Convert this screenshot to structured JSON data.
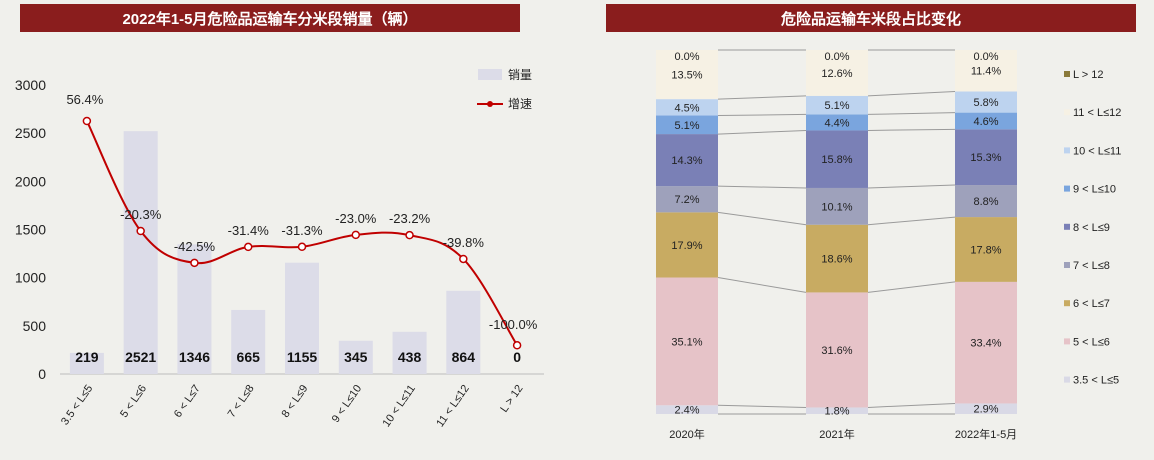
{
  "left": {
    "title": "2022年1-5月危险品运输车分米段销量（辆）",
    "legend": {
      "bar": "销量",
      "line": "增速"
    }
  },
  "right": {
    "title": "危险品运输车米段占比变化"
  },
  "colors": {
    "bar": "#dcdce8",
    "line": "#c00000",
    "title_bg": "#8a1d1d"
  },
  "chart_data": [
    {
      "type": "bar",
      "title": "2022年1-5月危险品运输车分米段销量（辆）",
      "categories": [
        "3.5 < L≤5",
        "5 < L≤6",
        "6 < L≤7",
        "7 < L≤8",
        "8 < L≤9",
        "9 < L≤10",
        "10 < L≤11",
        "11 < L≤12",
        "L > 12"
      ],
      "ylim": [
        0,
        3000
      ],
      "yticks": [
        0,
        500,
        1000,
        1500,
        2000,
        2500,
        3000
      ],
      "series": [
        {
          "name": "销量",
          "type": "bar",
          "values": [
            219,
            2521,
            1346,
            665,
            1155,
            345,
            438,
            864,
            0
          ]
        },
        {
          "name": "增速",
          "type": "line",
          "values": [
            56.4,
            -20.3,
            -42.5,
            -31.4,
            -31.3,
            -23.0,
            -23.2,
            -39.8,
            -100.0
          ],
          "labels": [
            "56.4%",
            "-20.3%",
            "-42.5%",
            "-31.4%",
            "-31.3%",
            "-23.0%",
            "-23.2%",
            "-39.8%",
            "-100.0%"
          ]
        }
      ],
      "grid": false,
      "legend_position": "top-right"
    },
    {
      "type": "bar",
      "stacked": true,
      "percent": true,
      "title": "危险品运输车米段占比变化",
      "categories": [
        "2020年",
        "2021年",
        "2022年1-5月"
      ],
      "segments_bottom_to_top": [
        "3.5 < L≤5",
        "5 < L≤6",
        "6 < L≤7",
        "7 < L≤8",
        "8 < L≤9",
        "9 < L≤10",
        "10 < L≤11",
        "11 < L≤12",
        "L > 12"
      ],
      "legend_top_to_bottom": [
        "L > 12",
        "11 < L≤12",
        "10 < L≤11",
        "9 < L≤10",
        "8 < L≤9",
        "7 < L≤8",
        "6 < L≤7",
        "5 < L≤6",
        "3.5 < L≤5"
      ],
      "legend_position": "right",
      "series": [
        {
          "name": "3.5 < L≤5",
          "color": "#d9d9e6",
          "values": [
            2.4,
            1.8,
            2.9
          ],
          "labels": [
            "2.4%",
            "1.8%",
            "2.9%"
          ]
        },
        {
          "name": "5 < L≤6",
          "color": "#e6c3c8",
          "values": [
            35.1,
            31.6,
            33.4
          ],
          "labels": [
            "35.1%",
            "31.6%",
            "33.4%"
          ]
        },
        {
          "name": "6 < L≤7",
          "color": "#c8ab62",
          "values": [
            17.9,
            18.6,
            17.8
          ],
          "labels": [
            "17.9%",
            "18.6%",
            "17.8%"
          ]
        },
        {
          "name": "7 < L≤8",
          "color": "#9ea1bb",
          "values": [
            7.2,
            10.1,
            8.8
          ],
          "labels": [
            "7.2%",
            "10.1%",
            "8.8%"
          ]
        },
        {
          "name": "8 < L≤9",
          "color": "#7a80b6",
          "values": [
            14.3,
            15.8,
            15.3
          ],
          "labels": [
            "14.3%",
            "15.8%",
            "15.3%"
          ]
        },
        {
          "name": "9 < L≤10",
          "color": "#7aa5de",
          "values": [
            5.1,
            4.4,
            4.6
          ],
          "labels": [
            "5.1%",
            "4.4%",
            "4.6%"
          ]
        },
        {
          "name": "10 < L≤11",
          "color": "#bdd3ef",
          "values": [
            4.5,
            5.1,
            5.8
          ],
          "labels": [
            "4.5%",
            "5.1%",
            "5.8%"
          ]
        },
        {
          "name": "11 < L≤12",
          "color": "#f6f1e4",
          "values": [
            13.5,
            12.6,
            11.4
          ],
          "labels": [
            "13.5%",
            "12.6%",
            "11.4%"
          ]
        },
        {
          "name": "L > 12",
          "color": "#8a7a3a",
          "values": [
            0.0,
            0.0,
            0.0
          ],
          "labels": [
            "0.0%",
            "0.0%",
            "0.0%"
          ]
        }
      ]
    }
  ]
}
